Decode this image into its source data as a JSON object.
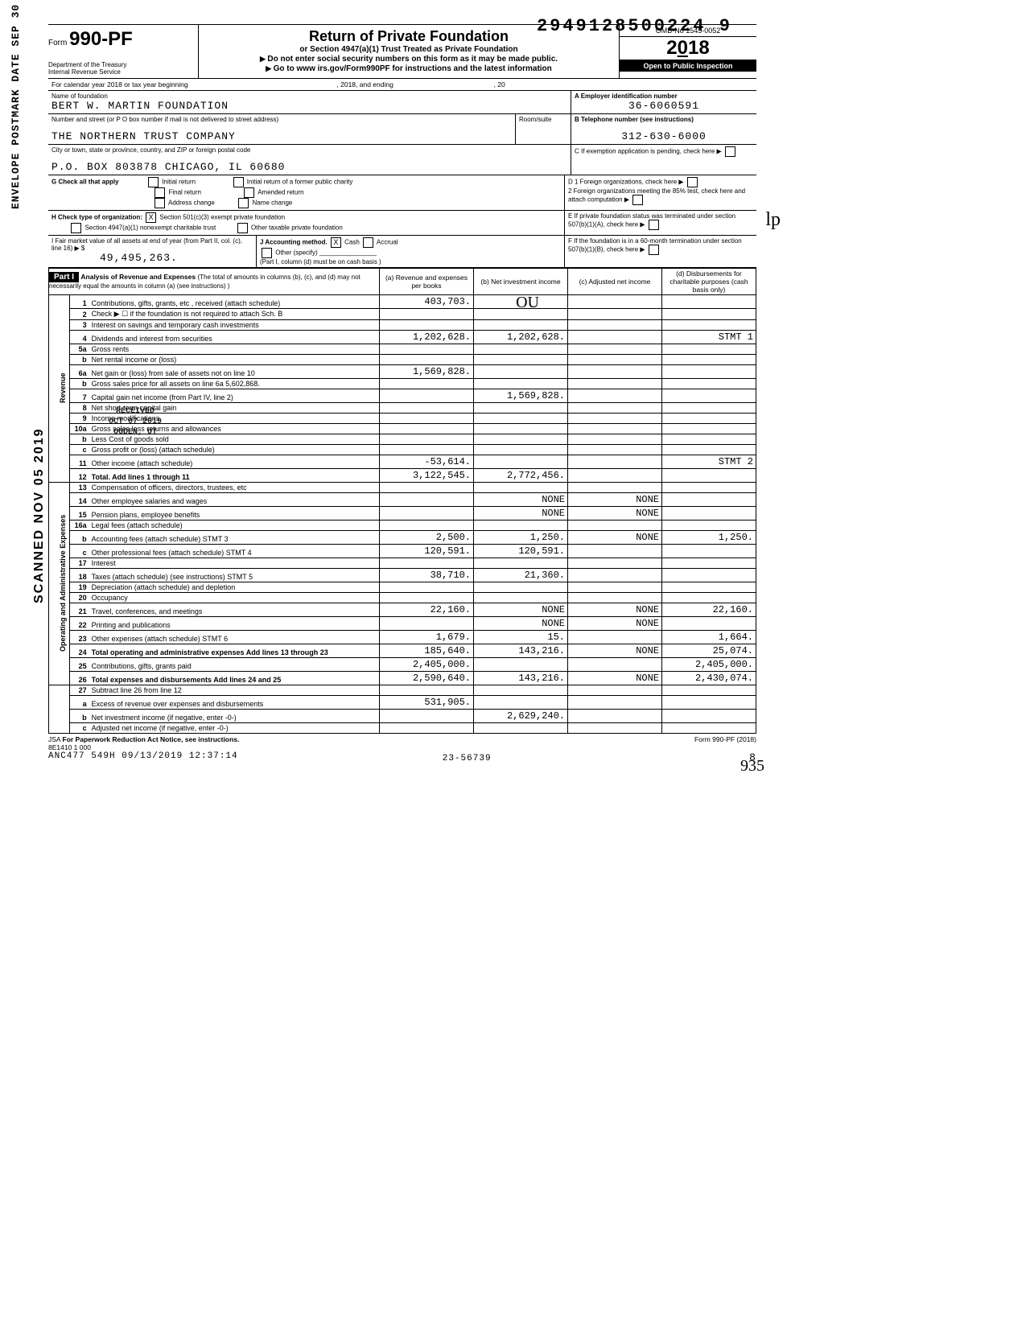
{
  "dln": "2949128500224 9",
  "form": {
    "prefix": "Form",
    "number": "990-PF",
    "dept1": "Department of the Treasury",
    "dept2": "Internal Revenue Service"
  },
  "title": "Return of Private Foundation",
  "subtitle1": "or Section 4947(a)(1) Trust Treated as Private Foundation",
  "subtitle2": "Do not enter social security numbers on this form as it may be made public.",
  "subtitle3": "Go to www irs.gov/Form990PF for instructions and the latest information",
  "omb": "OMB-No 1545-0052",
  "year": "2018",
  "inspection": "Open to Public Inspection",
  "calendar_line": {
    "a": "For calendar year 2018 or tax year beginning",
    "b": ", 2018, and ending",
    "c": ", 20"
  },
  "nameLabel": "Name of foundation",
  "name": "BERT W. MARTIN FOUNDATION",
  "addrLabel": "Number and street (or P O  box number if mail is not delivered to street address)",
  "addr2": "THE NORTHERN TRUST COMPANY",
  "roomLabel": "Room/suite",
  "cityLabel": "City or town, state or province, country, and ZIP or foreign postal code",
  "city": "P.O. BOX  803878    CHICAGO, IL 60680",
  "A_label": "A  Employer identification number",
  "A_val": "36-6060591",
  "B_label": "B  Telephone number (see instructions)",
  "B_val": "312-630-6000",
  "C_label": "C  If exemption application is pending, check here",
  "D1": "D  1  Foreign organizations, check here",
  "D2": "2  Foreign organizations meeting the 85% test, check here and attach computation",
  "E": "E  If private foundation status was terminated under section 507(b)(1)(A), check here",
  "F": "F  If the foundation is in a 60-month termination under section 507(b)(1)(B), check here",
  "G_label": "G  Check all that apply",
  "G_opts": [
    "Initial return",
    "Final return",
    "Address change",
    "Initial return of a former public charity",
    "Amended return",
    "Name change"
  ],
  "H_label": "H  Check type of organization:",
  "H_501": "Section 501(c)(3) exempt private foundation",
  "H_4947": "Section 4947(a)(1) nonexempt charitable trust",
  "H_other": "Other taxable private foundation",
  "I_label": "I  Fair market value of all assets at end of year (from Part II, col. (c), line 16) ▶ $",
  "I_val": "49,495,263.",
  "J_label": "J  Accounting method.",
  "J_cash": "Cash",
  "J_accrual": "Accrual",
  "J_other": "Other (specify)",
  "J_note": "(Part I, column (d) must be on cash basis )",
  "part1_label": "Part I",
  "part1_title": "Analysis of Revenue and Expenses",
  "part1_note": "(The total of amounts in columns (b), (c), and (d) may not necessarily equal the amounts in column (a) (see instructions) )",
  "cols": {
    "a": "(a) Revenue and expenses per books",
    "b": "(b) Net investment income",
    "c": "(c) Adjusted net income",
    "d": "(d) Disbursements for charitable purposes (cash basis only)"
  },
  "cats": {
    "rev": "Revenue",
    "opex": "Operating and Administrative Expenses"
  },
  "lines": [
    {
      "cat": "rev",
      "n": "1",
      "d": "Contributions, gifts, grants, etc , received (attach schedule)",
      "a": "403,703."
    },
    {
      "cat": "rev",
      "n": "2",
      "d": "Check ▶ ☐ if the foundation is not required to attach Sch. B"
    },
    {
      "cat": "rev",
      "n": "3",
      "d": "Interest on savings and temporary cash investments"
    },
    {
      "cat": "rev",
      "n": "4",
      "d": "Dividends and interest from securities",
      "a": "1,202,628.",
      "b": "1,202,628.",
      "dd": "STMT 1"
    },
    {
      "cat": "rev",
      "n": "5a",
      "d": "Gross rents"
    },
    {
      "cat": "rev",
      "n": "b",
      "d": "Net rental income or (loss)"
    },
    {
      "cat": "rev",
      "n": "6a",
      "d": "Net gain or (loss) from sale of assets not on line 10",
      "a": "1,569,828."
    },
    {
      "cat": "rev",
      "n": "b",
      "d": "Gross sales price for all assets on line 6a            5,602,868."
    },
    {
      "cat": "rev",
      "n": "7",
      "d": "Capital gain net income (from Part IV, line 2)",
      "b": "1,569,828."
    },
    {
      "cat": "rev",
      "n": "8",
      "d": "Net short-term capital gain"
    },
    {
      "cat": "rev",
      "n": "9",
      "d": "Income modifications"
    },
    {
      "cat": "rev",
      "n": "10a",
      "d": "Gross sales less returns and allowances"
    },
    {
      "cat": "rev",
      "n": "b",
      "d": "Less Cost of goods sold"
    },
    {
      "cat": "rev",
      "n": "c",
      "d": "Gross profit or (loss) (attach schedule)"
    },
    {
      "cat": "rev",
      "n": "11",
      "d": "Other income (attach schedule)",
      "a": "-53,614.",
      "dd": "STMT 2"
    },
    {
      "cat": "rev",
      "n": "12",
      "d": "Total. Add lines 1 through 11",
      "a": "3,122,545.",
      "b": "2,772,456.",
      "bold": true
    },
    {
      "cat": "opex",
      "n": "13",
      "d": "Compensation of officers, directors, trustees, etc"
    },
    {
      "cat": "opex",
      "n": "14",
      "d": "Other employee salaries and wages",
      "b": "NONE",
      "c": "NONE"
    },
    {
      "cat": "opex",
      "n": "15",
      "d": "Pension plans, employee benefits",
      "b": "NONE",
      "c": "NONE"
    },
    {
      "cat": "opex",
      "n": "16a",
      "d": "Legal fees (attach schedule)"
    },
    {
      "cat": "opex",
      "n": "b",
      "d": "Accounting fees (attach schedule) STMT 3",
      "a": "2,500.",
      "b": "1,250.",
      "c": "NONE",
      "dd": "1,250."
    },
    {
      "cat": "opex",
      "n": "c",
      "d": "Other professional fees (attach schedule) STMT 4",
      "a": "120,591.",
      "b": "120,591."
    },
    {
      "cat": "opex",
      "n": "17",
      "d": "Interest"
    },
    {
      "cat": "opex",
      "n": "18",
      "d": "Taxes (attach schedule) (see instructions) STMT 5",
      "a": "38,710.",
      "b": "21,360."
    },
    {
      "cat": "opex",
      "n": "19",
      "d": "Depreciation (attach schedule) and depletion"
    },
    {
      "cat": "opex",
      "n": "20",
      "d": "Occupancy"
    },
    {
      "cat": "opex",
      "n": "21",
      "d": "Travel, conferences, and meetings",
      "a": "22,160.",
      "b": "NONE",
      "c": "NONE",
      "dd": "22,160."
    },
    {
      "cat": "opex",
      "n": "22",
      "d": "Printing and publications",
      "b": "NONE",
      "c": "NONE"
    },
    {
      "cat": "opex",
      "n": "23",
      "d": "Other expenses (attach schedule) STMT 6",
      "a": "1,679.",
      "b": "15.",
      "dd": "1,664."
    },
    {
      "cat": "opex",
      "n": "24",
      "d": "Total operating and administrative expenses Add lines 13 through 23",
      "a": "185,640.",
      "b": "143,216.",
      "c": "NONE",
      "dd": "25,074.",
      "bold": true
    },
    {
      "cat": "opex",
      "n": "25",
      "d": "Contributions, gifts, grants paid",
      "a": "2,405,000.",
      "dd": "2,405,000."
    },
    {
      "cat": "opex",
      "n": "26",
      "d": "Total expenses and disbursements Add lines 24 and 25",
      "a": "2,590,640.",
      "b": "143,216.",
      "c": "NONE",
      "dd": "2,430,074.",
      "bold": true
    },
    {
      "cat": "",
      "n": "27",
      "d": "Subtract line 26 from line 12"
    },
    {
      "cat": "",
      "n": "a",
      "d": "Excess of revenue over expenses and disbursements",
      "a": "531,905."
    },
    {
      "cat": "",
      "n": "b",
      "d": "Net investment income (if negative, enter -0-)",
      "b": "2,629,240."
    },
    {
      "cat": "",
      "n": "c",
      "d": "Adjusted net income (if negative, enter -0-)"
    }
  ],
  "footer": {
    "jsa": "JSA",
    "pra": "For Paperwork Reduction Act Notice, see instructions.",
    "code": "8E1410 1 000",
    "stamp": "ANC477 549H 09/13/2019 12:37:14",
    "mid": "23-56739",
    "form": "Form 990-PF (2018)",
    "page": "8"
  },
  "stamps": {
    "postmark": "ENVELOPE POSTMARK DATE SEP 30 2019",
    "scanned": "SCANNED NOV 05 2019",
    "received": "RECEIVED\nOCT 07 2019\nOGDEN, UT"
  }
}
